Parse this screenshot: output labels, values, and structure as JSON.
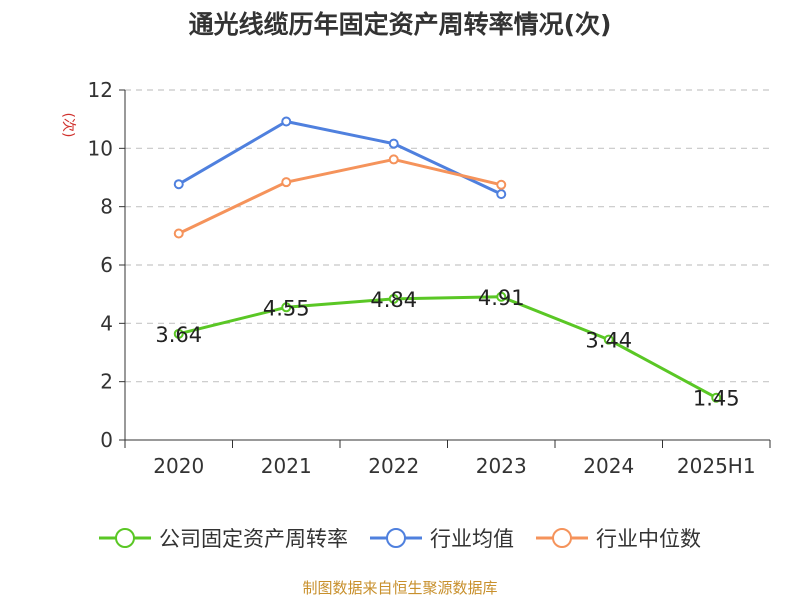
{
  "chart_data": {
    "type": "line",
    "title": "通光线缆历年固定资产周转率情况(次)",
    "ylabel": "(次)",
    "xlabel": "",
    "categories": [
      "2020",
      "2021",
      "2022",
      "2023",
      "2024",
      "2025H1"
    ],
    "ylim": [
      0,
      12
    ],
    "yticks": [
      0,
      2,
      4,
      6,
      8,
      10,
      12
    ],
    "grid": true,
    "legend_position": "bottom",
    "series": [
      {
        "name": "公司固定资产周转率",
        "color": "#5ac725",
        "values": [
          3.64,
          4.55,
          4.84,
          4.91,
          3.44,
          1.45
        ],
        "labels": [
          "3.64",
          "4.55",
          "4.84",
          "4.91",
          "3.44",
          "1.45"
        ]
      },
      {
        "name": "行业均值",
        "color": "#4f80de",
        "values": [
          8.77,
          10.92,
          10.16,
          8.43,
          null,
          null
        ]
      },
      {
        "name": "行业中位数",
        "color": "#f5935b",
        "values": [
          7.08,
          8.84,
          9.62,
          8.75,
          null,
          null
        ]
      }
    ]
  },
  "footer": {
    "source": "制图数据来自恒生聚源数据库"
  },
  "colors": {
    "axis_line": "#333333",
    "grid_line": "#c8c8c8",
    "ylabel_color": "#d0312d",
    "source_color": "#c8902c"
  }
}
